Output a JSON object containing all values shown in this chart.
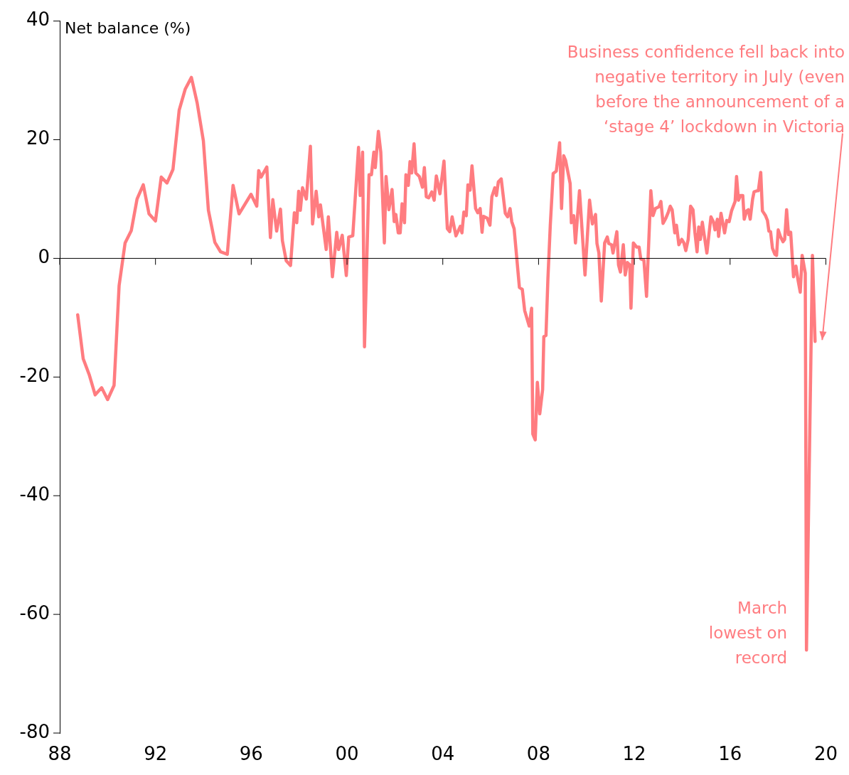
{
  "chart_data": {
    "type": "line",
    "ylabel": "Net balance (%)",
    "xlim": [
      1988,
      2020
    ],
    "ylim": [
      -80,
      40
    ],
    "xticks": [
      {
        "value": 1988,
        "label": "88"
      },
      {
        "value": 1992,
        "label": "92"
      },
      {
        "value": 1996,
        "label": "96"
      },
      {
        "value": 2000,
        "label": "00"
      },
      {
        "value": 2004,
        "label": "04"
      },
      {
        "value": 2008,
        "label": "08"
      },
      {
        "value": 2012,
        "label": "12"
      },
      {
        "value": 2016,
        "label": "16"
      },
      {
        "value": 2020,
        "label": "20"
      }
    ],
    "yticks": [
      -80,
      -60,
      -40,
      -20,
      0,
      20,
      40
    ],
    "legend": false,
    "marker": "none",
    "line_style": "solid",
    "annotations": [
      "Business confidence fell back into\nnegative territory in July (even\nbefore the announcement of a\n‘stage 4’ lockdown in Victoria",
      {
        "text": "March\nlowest on\nrecord",
        "x": 2019.19,
        "y": -66
      }
    ],
    "series": [
      {
        "color": "#ff7c80",
        "x": [
          1988.75,
          1988.98,
          1989.24,
          1989.48,
          1989.75,
          1990.0,
          1990.27,
          1990.48,
          1990.73,
          1990.99,
          1991.23,
          1991.49,
          1991.73,
          1992.0,
          1992.24,
          1992.48,
          1992.73,
          1992.99,
          1993.24,
          1993.5,
          1993.74,
          1994.0,
          1994.21,
          1994.48,
          1994.72,
          1995.0,
          1995.24,
          1995.49,
          1995.99,
          1996.23,
          1996.31,
          1996.41,
          1996.65,
          1996.8,
          1996.9,
          1997.06,
          1997.22,
          1997.3,
          1997.46,
          1997.64,
          1997.8,
          1997.9,
          1997.98,
          1998.05,
          1998.14,
          1998.3,
          1998.47,
          1998.56,
          1998.71,
          1998.82,
          1998.89,
          1999.13,
          1999.22,
          1999.39,
          1999.57,
          1999.65,
          1999.8,
          1999.97,
          2000.07,
          2000.24,
          2000.48,
          2000.55,
          2000.65,
          2000.73,
          2000.92,
          2001.02,
          2001.12,
          2001.18,
          2001.31,
          2001.41,
          2001.56,
          2001.63,
          2001.75,
          2001.88,
          2001.97,
          2002.04,
          2002.14,
          2002.22,
          2002.3,
          2002.4,
          2002.46,
          2002.56,
          2002.63,
          2002.7,
          2002.8,
          2002.87,
          2003.02,
          2003.15,
          2003.23,
          2003.31,
          2003.41,
          2003.54,
          2003.64,
          2003.73,
          2003.88,
          2004.05,
          2004.19,
          2004.29,
          2004.39,
          2004.55,
          2004.73,
          2004.8,
          2004.88,
          2004.98,
          2005.05,
          2005.14,
          2005.22,
          2005.37,
          2005.46,
          2005.56,
          2005.64,
          2005.7,
          2005.85,
          2005.97,
          2006.05,
          2006.17,
          2006.24,
          2006.32,
          2006.44,
          2006.61,
          2006.71,
          2006.81,
          2006.88,
          2006.98,
          2007.08,
          2007.2,
          2007.32,
          2007.42,
          2007.61,
          2007.71,
          2007.76,
          2007.86,
          2007.95,
          2008.05,
          2008.17,
          2008.22,
          2008.31,
          2008.39,
          2008.49,
          2008.61,
          2008.74,
          2008.88,
          2008.96,
          2009.05,
          2009.13,
          2009.32,
          2009.37,
          2009.47,
          2009.54,
          2009.71,
          2009.94,
          2010.13,
          2010.25,
          2010.38,
          2010.44,
          2010.52,
          2010.62,
          2010.76,
          2010.87,
          2010.93,
          2011.05,
          2011.11,
          2011.27,
          2011.34,
          2011.42,
          2011.54,
          2011.62,
          2011.71,
          2011.81,
          2011.86,
          2011.96,
          2012.1,
          2012.2,
          2012.27,
          2012.4,
          2012.51,
          2012.69,
          2012.78,
          2012.88,
          2013.03,
          2013.11,
          2013.2,
          2013.32,
          2013.42,
          2013.5,
          2013.58,
          2013.69,
          2013.76,
          2013.86,
          2013.98,
          2014.07,
          2014.15,
          2014.25,
          2014.35,
          2014.45,
          2014.53,
          2014.62,
          2014.69,
          2014.76,
          2014.84,
          2015.03,
          2015.2,
          2015.3,
          2015.37,
          2015.47,
          2015.52,
          2015.62,
          2015.77,
          2015.86,
          2015.96,
          2016.06,
          2016.21,
          2016.27,
          2016.35,
          2016.43,
          2016.53,
          2016.59,
          2016.69,
          2016.76,
          2016.84,
          2016.94,
          2017.0,
          2017.13,
          2017.18,
          2017.28,
          2017.35,
          2017.48,
          2017.56,
          2017.62,
          2017.69,
          2017.77,
          2017.87,
          2017.94,
          2018.01,
          2018.11,
          2018.21,
          2018.28,
          2018.36,
          2018.44,
          2018.53,
          2018.65,
          2018.75,
          2018.83,
          2018.93,
          2019.01,
          2019.14,
          2019.19,
          2019.44,
          2019.55
        ],
        "values": [
          -9.5,
          -16.9,
          -19.7,
          -23,
          -21.8,
          -23.8,
          -21.4,
          -4.6,
          2.6,
          4.7,
          10,
          12.4,
          7.5,
          6.3,
          13.7,
          12.7,
          15,
          25,
          28.5,
          30.5,
          26.2,
          19.8,
          8.1,
          2.7,
          1.1,
          0.7,
          12.3,
          7.5,
          10.8,
          8.8,
          14.8,
          13.7,
          15.4,
          3.5,
          9.9,
          4.6,
          8.3,
          3,
          -0.4,
          -1.2,
          7.7,
          6,
          11.3,
          8.1,
          11.9,
          10,
          18.9,
          5.8,
          11.3,
          7,
          9,
          1.5,
          7,
          -3.1,
          4.4,
          1.5,
          3.9,
          -2.9,
          3.6,
          3.8,
          18.7,
          10.6,
          17.9,
          -14.9,
          14.1,
          14.1,
          17.9,
          15.3,
          21.4,
          17.9,
          2.6,
          13.8,
          8.2,
          11.6,
          6.2,
          7.4,
          4.3,
          4.3,
          9.2,
          6,
          14.1,
          12.3,
          16.3,
          14.4,
          19.3,
          14.4,
          13.8,
          12,
          15.3,
          10.4,
          10.2,
          11.2,
          9.8,
          13.9,
          10.9,
          16.4,
          5,
          4.5,
          7,
          3.8,
          5.4,
          4.3,
          7.8,
          7.2,
          12.4,
          11.5,
          15.6,
          8.4,
          7.7,
          8.4,
          4.4,
          7.1,
          6.8,
          5.6,
          10.4,
          11.9,
          10.6,
          12.9,
          13.4,
          7.6,
          7,
          8.4,
          6.2,
          5,
          0.5,
          -4.9,
          -5.2,
          -8.8,
          -11.4,
          -8.4,
          -29.6,
          -30.6,
          -20.9,
          -26.2,
          -22.1,
          -13.2,
          -13,
          -3.5,
          5.6,
          14.3,
          14.7,
          19.5,
          8.4,
          17.3,
          16.5,
          12.6,
          6,
          7.2,
          2.6,
          11.4,
          -2.8,
          9.8,
          5.8,
          7.4,
          2.5,
          0.9,
          -7.2,
          2.6,
          3.6,
          2.5,
          2.3,
          0.9,
          4.5,
          -1.1,
          -2.3,
          2.3,
          -2.8,
          -0.7,
          -1.1,
          -8.4,
          2.6,
          1.9,
          1.9,
          -0.1,
          -0.3,
          -6.4,
          11.4,
          7.2,
          8.4,
          8.7,
          9.6,
          5.9,
          6.8,
          7.8,
          8.8,
          8.2,
          4.3,
          5.6,
          2.3,
          3.2,
          2.6,
          1.3,
          3.2,
          8.8,
          8.2,
          4.4,
          1.1,
          5.3,
          3.2,
          6.1,
          0.9,
          7,
          6.2,
          4.8,
          6.6,
          3.7,
          7.6,
          4.3,
          6.4,
          6.2,
          8,
          9.6,
          13.8,
          9.8,
          10.6,
          10.6,
          6.6,
          8,
          8.2,
          6.6,
          10,
          11.2,
          11.4,
          11.4,
          14.5,
          8,
          7.2,
          6.4,
          4.6,
          4.5,
          1.7,
          0.7,
          0.5,
          4.8,
          3.6,
          2.8,
          3.2,
          8.2,
          4,
          4.4,
          -3.1,
          -1.3,
          -3.5,
          -5.7,
          0.5,
          -2.5,
          -66,
          0.5,
          -14
        ]
      }
    ]
  }
}
